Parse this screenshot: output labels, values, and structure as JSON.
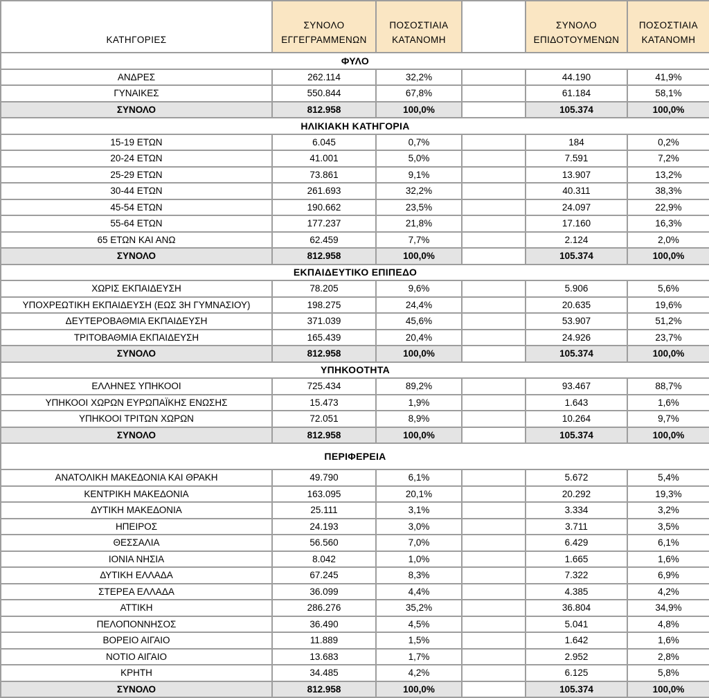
{
  "colors": {
    "header_fill": "#FAE6C3",
    "total_fill": "#E4E4E4",
    "border": "#9D9D9D",
    "text": "#000000",
    "background": "#FFFFFF"
  },
  "chart_data": {
    "type": "table",
    "columns": [
      "ΚΑΤΗΓΟΡΙΕΣ",
      "ΣΥΝΟΛΟ ΕΓΓΕΓΡΑΜΜΕΝΩΝ",
      "ΠΟΣΟΣΤΙΑΙΑ ΚΑΤΑΝΟΜΗ",
      "",
      "ΣΥΝΟΛΟ ΕΠΙΔΟΤΟΥΜΕΝΩΝ",
      "ΠΟΣΟΣΤΙΑΙΑ ΚΑΤΑΝΟΜΗ"
    ],
    "sections": [
      {
        "title": "ΦΥΛΟ",
        "rows": [
          [
            "ΑΝΔΡΕΣ",
            "262.114",
            "32,2%",
            "44.190",
            "41,9%"
          ],
          [
            "ΓΥΝΑΙΚΕΣ",
            "550.844",
            "67,8%",
            "61.184",
            "58,1%"
          ]
        ],
        "total": [
          "ΣΥΝΟΛΟ",
          "812.958",
          "100,0%",
          "105.374",
          "100,0%"
        ]
      },
      {
        "title": "ΗΛΙΚΙΑΚΗ ΚΑΤΗΓΟΡΙΑ",
        "rows": [
          [
            "15-19 ΕΤΩΝ",
            "6.045",
            "0,7%",
            "184",
            "0,2%"
          ],
          [
            "20-24 ΕΤΩΝ",
            "41.001",
            "5,0%",
            "7.591",
            "7,2%"
          ],
          [
            "25-29 ΕΤΩΝ",
            "73.861",
            "9,1%",
            "13.907",
            "13,2%"
          ],
          [
            "30-44 ΕΤΩΝ",
            "261.693",
            "32,2%",
            "40.311",
            "38,3%"
          ],
          [
            "45-54 ΕΤΩΝ",
            "190.662",
            "23,5%",
            "24.097",
            "22,9%"
          ],
          [
            "55-64 ΕΤΩΝ",
            "177.237",
            "21,8%",
            "17.160",
            "16,3%"
          ],
          [
            "65 ΕΤΩΝ ΚΑΙ ΑΝΩ",
            "62.459",
            "7,7%",
            "2.124",
            "2,0%"
          ]
        ],
        "total": [
          "ΣΥΝΟΛΟ",
          "812.958",
          "100,0%",
          "105.374",
          "100,0%"
        ]
      },
      {
        "title": "ΕΚΠΑΙΔΕΥΤΙΚΟ ΕΠΙΠΕΔΟ",
        "rows": [
          [
            "ΧΩΡΙΣ ΕΚΠΑΙΔΕΥΣΗ",
            "78.205",
            "9,6%",
            "5.906",
            "5,6%"
          ],
          [
            "ΥΠΟΧΡΕΩΤΙΚΗ ΕΚΠΑΙΔΕΥΣΗ (ΕΩΣ 3Η ΓΥΜΝΑΣΙΟΥ)",
            "198.275",
            "24,4%",
            "20.635",
            "19,6%"
          ],
          [
            "ΔΕΥΤΕΡΟΒΑΘΜΙΑ ΕΚΠΑΙΔΕΥΣΗ",
            "371.039",
            "45,6%",
            "53.907",
            "51,2%"
          ],
          [
            "ΤΡΙΤΟΒΑΘΜΙΑ ΕΚΠΑΙΔΕΥΣΗ",
            "165.439",
            "20,4%",
            "24.926",
            "23,7%"
          ]
        ],
        "total": [
          "ΣΥΝΟΛΟ",
          "812.958",
          "100,0%",
          "105.374",
          "100,0%"
        ]
      },
      {
        "title": "ΥΠΗΚΟΟΤΗΤΑ",
        "rows": [
          [
            "ΕΛΛΗΝΕΣ ΥΠΗΚΟΟΙ",
            "725.434",
            "89,2%",
            "93.467",
            "88,7%"
          ],
          [
            "ΥΠΗΚΟΟΙ ΧΩΡΩΝ ΕΥΡΩΠΑΪΚΗΣ ΕΝΩΣΗΣ",
            "15.473",
            "1,9%",
            "1.643",
            "1,6%"
          ],
          [
            "ΥΠΗΚΟΟΙ ΤΡΙΤΩΝ ΧΩΡΩΝ",
            "72.051",
            "8,9%",
            "10.264",
            "9,7%"
          ]
        ],
        "total": [
          "ΣΥΝΟΛΟ",
          "812.958",
          "100,0%",
          "105.374",
          "100,0%"
        ]
      },
      {
        "title": "ΠΕΡΙΦΕΡΕΙΑ",
        "tall": true,
        "rows": [
          [
            "ΑΝΑΤΟΛΙΚΗ ΜΑΚΕΔΟΝΙΑ ΚΑΙ ΘΡΑΚΗ",
            "49.790",
            "6,1%",
            "5.672",
            "5,4%"
          ],
          [
            "ΚΕΝΤΡΙΚΗ ΜΑΚΕΔΟΝΙΑ",
            "163.095",
            "20,1%",
            "20.292",
            "19,3%"
          ],
          [
            "ΔΥΤΙΚΗ ΜΑΚΕΔΟΝΙΑ",
            "25.111",
            "3,1%",
            "3.334",
            "3,2%"
          ],
          [
            "ΗΠΕΙΡΟΣ",
            "24.193",
            "3,0%",
            "3.711",
            "3,5%"
          ],
          [
            "ΘΕΣΣΑΛΙΑ",
            "56.560",
            "7,0%",
            "6.429",
            "6,1%"
          ],
          [
            "ΙΟΝΙΑ ΝΗΣΙΑ",
            "8.042",
            "1,0%",
            "1.665",
            "1,6%"
          ],
          [
            "ΔΥΤΙΚΗ ΕΛΛΑΔΑ",
            "67.245",
            "8,3%",
            "7.322",
            "6,9%"
          ],
          [
            "ΣΤΕΡΕΑ ΕΛΛΑΔΑ",
            "36.099",
            "4,4%",
            "4.385",
            "4,2%"
          ],
          [
            "ΑΤΤΙΚΗ",
            "286.276",
            "35,2%",
            "36.804",
            "34,9%"
          ],
          [
            "ΠΕΛΟΠΟΝΝΗΣΟΣ",
            "36.490",
            "4,5%",
            "5.041",
            "4,8%"
          ],
          [
            "ΒΟΡΕΙΟ ΑΙΓΑΙΟ",
            "11.889",
            "1,5%",
            "1.642",
            "1,6%"
          ],
          [
            "ΝΟΤΙΟ ΑΙΓΑΙΟ",
            "13.683",
            "1,7%",
            "2.952",
            "2,8%"
          ],
          [
            "ΚΡΗΤΗ",
            "34.485",
            "4,2%",
            "6.125",
            "5,8%"
          ]
        ],
        "total": [
          "ΣΥΝΟΛΟ",
          "812.958",
          "100,0%",
          "105.374",
          "100,0%"
        ]
      }
    ]
  }
}
